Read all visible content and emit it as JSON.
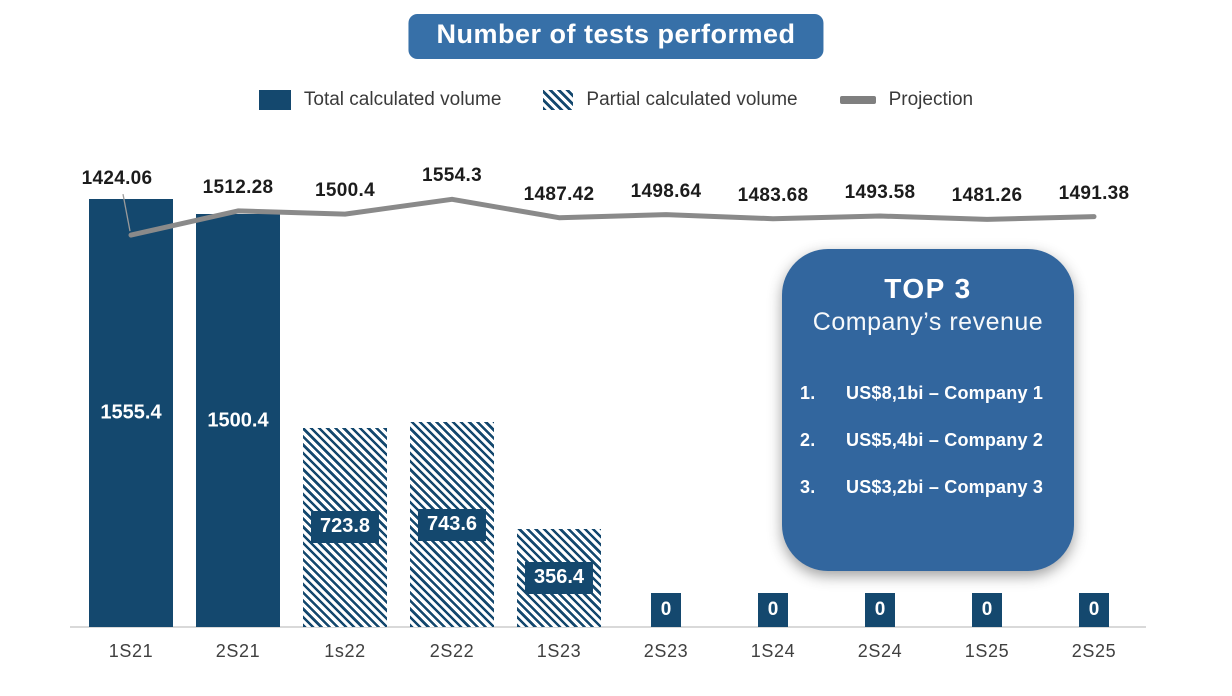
{
  "title": "Number of tests performed",
  "legend": {
    "items": [
      {
        "label": "Total calculated volume",
        "swatch": "solid"
      },
      {
        "label": "Partial calculated volume",
        "swatch": "hatched"
      },
      {
        "label": "Projection",
        "swatch": "line"
      }
    ]
  },
  "colors": {
    "navy": "#14486E",
    "title_box_blue": "#3770A8",
    "card_blue": "#32669E",
    "projection_gray": "#8A8A8A",
    "axis_gray": "#D9D9D9"
  },
  "chart_data": {
    "type": "bar",
    "title": "Number of tests performed",
    "categories": [
      "1S21",
      "2S21",
      "1s22",
      "2S22",
      "1S23",
      "2S23",
      "1S24",
      "2S24",
      "1S25",
      "2S25"
    ],
    "series": [
      {
        "name": "Calculated volume",
        "type": "bar",
        "values": [
          1555.4,
          1500.4,
          723.8,
          743.6,
          356.4,
          0,
          0,
          0,
          0,
          0
        ],
        "bar_styles": [
          "solid",
          "solid",
          "hatched",
          "hatched",
          "hatched",
          "zero",
          "zero",
          "zero",
          "zero",
          "zero"
        ]
      },
      {
        "name": "Projection",
        "type": "line",
        "values": [
          1424.06,
          1512.28,
          1500.4,
          1554.3,
          1487.42,
          1498.64,
          1483.68,
          1493.58,
          1481.26,
          1491.38
        ]
      }
    ],
    "ylim": [
      0,
      1600
    ],
    "grid": false,
    "legend_position": "top"
  },
  "top3_card": {
    "title": "TOP 3",
    "subtitle": "Company’s revenue",
    "items": [
      {
        "rank": "1.",
        "text": "US$8,1bi – Company 1"
      },
      {
        "rank": "2.",
        "text": "US$5,4bi – Company 2"
      },
      {
        "rank": "3.",
        "text": "US$3,2bi – Company 3"
      }
    ]
  }
}
